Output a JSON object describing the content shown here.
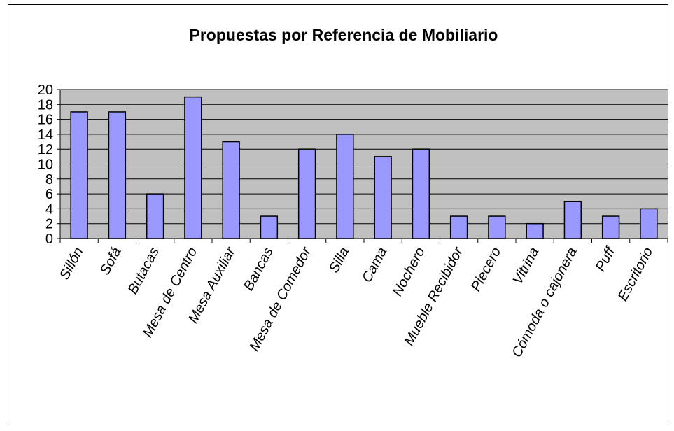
{
  "chart_data": {
    "type": "bar",
    "title": "Propuestas por Referencia de Mobiliario",
    "categories": [
      "Sillón",
      "Sofá",
      "Butacas",
      "Mesa de Centro",
      "Mesa Auxiliar",
      "Bancas",
      "Mesa de Comedor",
      "Silla",
      "Cama",
      "Nochero",
      "Mueble Recibidor",
      "Piecero",
      "Vitrina",
      "Cómoda o cajonera",
      "Puff",
      "Escritorio"
    ],
    "values": [
      17,
      17,
      6,
      19,
      13,
      3,
      12,
      14,
      11,
      12,
      3,
      3,
      2,
      5,
      3,
      4
    ],
    "color": "#9999ff",
    "ylim": [
      0,
      20
    ],
    "yticks": [
      0,
      2,
      4,
      6,
      8,
      10,
      12,
      14,
      16,
      18,
      20
    ],
    "grid": true
  }
}
